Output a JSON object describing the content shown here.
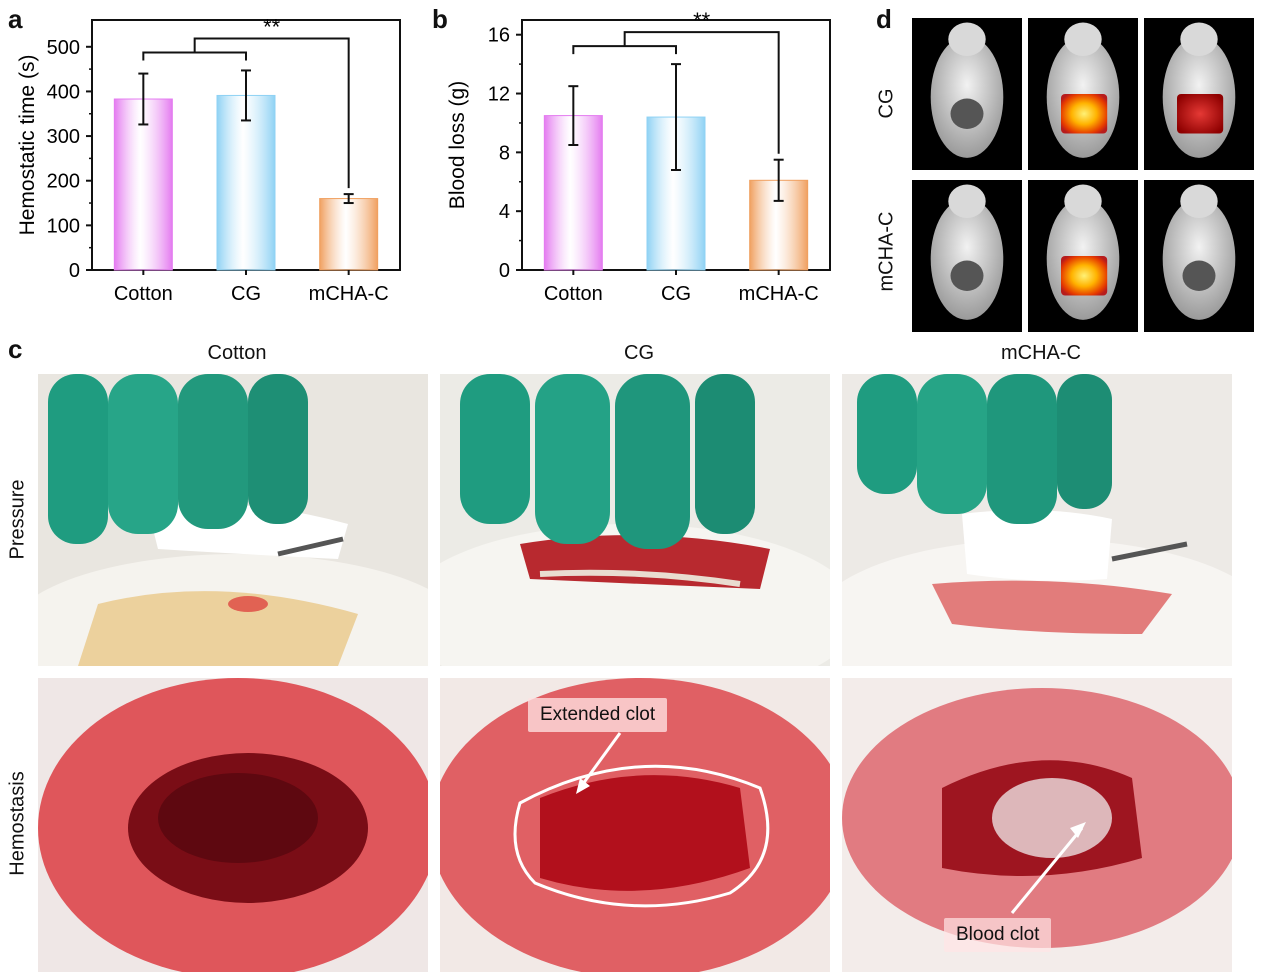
{
  "panels": {
    "a": "a",
    "b": "b",
    "c": "c",
    "d": "d"
  },
  "chart_data": [
    {
      "type": "bar",
      "panel": "a",
      "categories": [
        "Cotton",
        "CG",
        "mCHA-C"
      ],
      "values": [
        383,
        391,
        160
      ],
      "errors": [
        57,
        56,
        10
      ],
      "ylabel": "Hemostatic time (s)",
      "xlabel": "",
      "ylim": [
        0,
        560
      ],
      "yticks": [
        0,
        100,
        200,
        300,
        400,
        500
      ],
      "significance": "**",
      "colors": [
        "#e47bf0",
        "#8fd2f4",
        "#f0a060"
      ],
      "grid": false
    },
    {
      "type": "bar",
      "panel": "b",
      "categories": [
        "Cotton",
        "CG",
        "mCHA-C"
      ],
      "values": [
        10.5,
        10.4,
        6.1
      ],
      "errors": [
        2.0,
        3.6,
        1.4
      ],
      "ylabel": "Blood loss (g)",
      "xlabel": "",
      "ylim": [
        0,
        17
      ],
      "yticks": [
        0,
        4,
        8,
        12,
        16
      ],
      "significance": "**",
      "colors": [
        "#e47bf0",
        "#8fd2f4",
        "#f0a060"
      ],
      "grid": false
    }
  ],
  "panel_d": {
    "row_labels": [
      "CG",
      "mCHA-C"
    ]
  },
  "panel_c": {
    "column_titles": [
      "Cotton",
      "CG",
      "mCHA-C"
    ],
    "row_labels": [
      "Pressure",
      "Hemostasis"
    ],
    "annotations": {
      "extended_clot": "Extended clot",
      "blood_clot": "Blood clot"
    }
  }
}
